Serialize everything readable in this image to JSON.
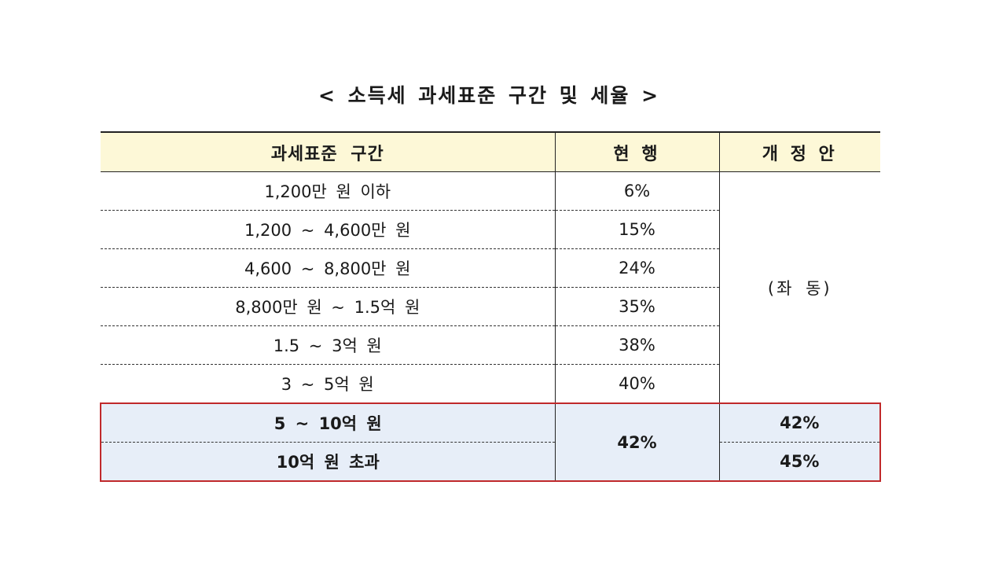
{
  "title": "< 소득세 과세표준 구간 및 세율 >",
  "headers": {
    "bracket": "과세표준 구간",
    "current": "현 행",
    "proposal": "개 정 안"
  },
  "rows": [
    {
      "bracket": "1,200만 원 이하",
      "current": "6%"
    },
    {
      "bracket": "1,200 ~ 4,600만 원",
      "current": "15%"
    },
    {
      "bracket": "4,600 ~ 8,800만 원",
      "current": "24%"
    },
    {
      "bracket": "8,800만 원 ~ 1.5억 원",
      "current": "35%"
    },
    {
      "bracket": "1.5 ~ 3억 원",
      "current": "38%"
    },
    {
      "bracket": "3 ~ 5억 원",
      "current": "40%"
    }
  ],
  "proposal_same": "(좌 동)",
  "highlighted": {
    "current_merged": "42%",
    "rows": [
      {
        "bracket": "5 ~ 10억 원",
        "proposal": "42%"
      },
      {
        "bracket": "10억 원 초과",
        "proposal": "45%"
      }
    ]
  },
  "colors": {
    "header_bg": "#fdf8d7",
    "highlight_bg": "#e7eef8",
    "highlight_border": "#c0292b"
  }
}
